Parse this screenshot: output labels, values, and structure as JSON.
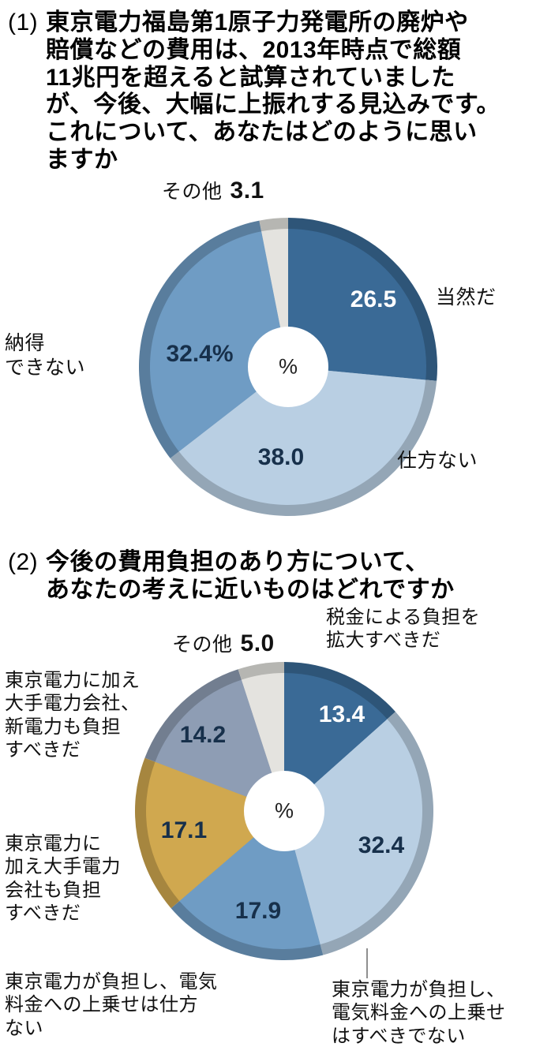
{
  "section1": {
    "prefix": "(1)",
    "question": "東京電力福島第1原子力発電所の廃炉や\n賠償などの費用は、2013年時点で総額\n11兆円を超えると試算されていました\nが、今後、大幅に上振れする見込みです。\nこれについて、あなたはどのように思い\nますか"
  },
  "section2": {
    "prefix": "(2)",
    "question": "今後の費用負担のあり方について、\nあなたの考えに近いものはどれですか"
  },
  "chart_data": [
    {
      "type": "pie",
      "title": "東京電力福島第1原子力発電所の廃炉や賠償などの費用の大幅な上振れについて、あなたはどのように思いますか",
      "unit": "%",
      "center_label": "%",
      "start_angle_deg": -90,
      "direction": "clockwise",
      "slices": [
        {
          "label": "当然だ",
          "value": 26.5,
          "display": "26.5",
          "color": "#3a6a96"
        },
        {
          "label": "仕方ない",
          "value": 38.0,
          "display": "38.0",
          "color": "#b9cfe3"
        },
        {
          "label": "納得できない",
          "callout": "納得\nできない",
          "value": 32.4,
          "display": "32.4%",
          "color": "#6f9cc4"
        },
        {
          "label": "その他",
          "value": 3.1,
          "display": "3.1",
          "color": "#e4e3df"
        }
      ]
    },
    {
      "type": "pie",
      "title": "今後の費用負担のあり方について、あなたの考えに近いものはどれですか",
      "unit": "%",
      "center_label": "%",
      "start_angle_deg": -90,
      "direction": "clockwise",
      "slices": [
        {
          "label": "税金による負担を拡大すべきだ",
          "callout": "税金による負担を\n拡大すべきだ",
          "value": 13.4,
          "display": "13.4",
          "color": "#3a6a96"
        },
        {
          "label": "東京電力が負担し、電気料金への上乗せはすべきでない",
          "callout": "東京電力が負担し、\n電気料金への上乗せ\nはすべきでない",
          "value": 32.4,
          "display": "32.4",
          "color": "#b9cfe3"
        },
        {
          "label": "東京電力が負担し、電気料金への上乗せは仕方ない",
          "callout": "東京電力が負担し、電気\n料金への上乗せは仕方\nない",
          "value": 17.9,
          "display": "17.9",
          "color": "#6f9cc4"
        },
        {
          "label": "東京電力に加え大手電力会社も負担すべきだ",
          "callout": "東京電力に\n加え大手電力\n会社も負担\nすべきだ",
          "value": 17.1,
          "display": "17.1",
          "color": "#d0a84f"
        },
        {
          "label": "東京電力に加え大手電力会社、新電力も負担すべきだ",
          "callout": "東京電力に加え\n大手電力会社、\n新電力も負担\nすべきだ",
          "value": 14.2,
          "display": "14.2",
          "color": "#8e9db4"
        },
        {
          "label": "その他",
          "value": 5.0,
          "display": "5.0",
          "color": "#e4e3df"
        }
      ]
    }
  ]
}
